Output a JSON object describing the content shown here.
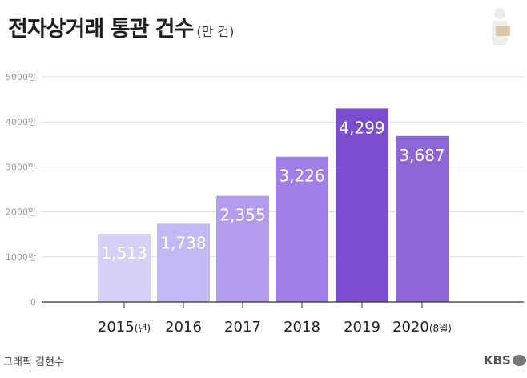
{
  "header": {
    "title": "전자상거래 통관 건수",
    "unit": "(만 건)"
  },
  "footer": {
    "credit": "그래픽 김현수",
    "logo": "KBS"
  },
  "chart_data": {
    "type": "bar",
    "title": "전자상거래 통관 건수",
    "unit": "(만 건)",
    "categories": [
      "2015",
      "2016",
      "2017",
      "2018",
      "2019",
      "2020"
    ],
    "category_suffixes": [
      "(년)",
      "",
      "",
      "",
      "",
      "(8월)"
    ],
    "values": [
      1513,
      1738,
      2355,
      3226,
      4299,
      3687
    ],
    "value_labels": [
      "1,513",
      "1,738",
      "2,355",
      "3,226",
      "4,299",
      "3,687"
    ],
    "bar_colors": [
      "#d6d0f6",
      "#c4b8f4",
      "#b29ced",
      "#a27fe6",
      "#7b4ed0",
      "#8e66d8"
    ],
    "y_ticks": [
      0,
      1000,
      2000,
      3000,
      4000,
      5000
    ],
    "y_tick_labels": [
      "0",
      "1000만",
      "2000만",
      "3000만",
      "4000만",
      "5000만"
    ],
    "ylim": [
      0,
      5000
    ],
    "grid": true,
    "xlabel": "",
    "ylabel": ""
  }
}
